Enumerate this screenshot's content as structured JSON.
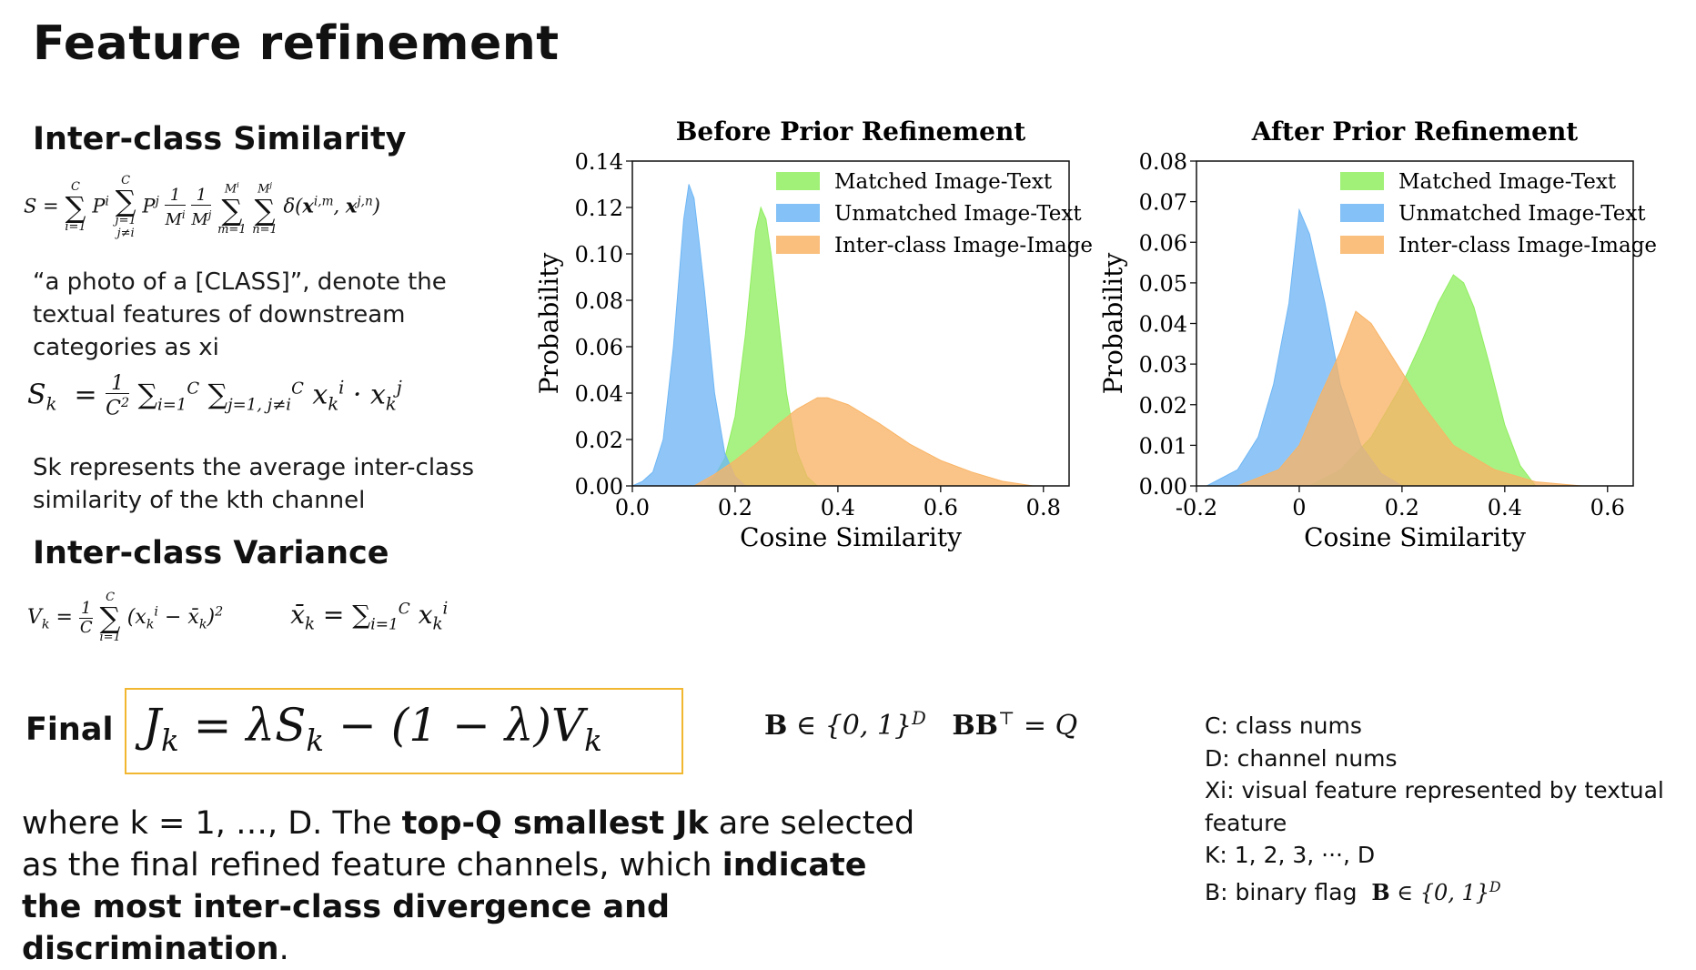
{
  "title": "Feature refinement",
  "sections": {
    "similarity_heading": "Inter-class Similarity",
    "similarity_desc_1": "“a photo of a [CLASS]”,   denote the textual features of downstream categories as xi",
    "sk_desc": "Sk represents the average inter-class similarity of the kth channel",
    "variance_heading": "Inter-class Variance",
    "final_label": "Final"
  },
  "bottom": {
    "p1": "where k = 1, …, D. The ",
    "b1": "top-Q smallest Jk",
    "p2": " are selected as the final refined feature channels, which ",
    "b2": "indicate the most inter-class divergence and discrimination",
    "p3": "."
  },
  "notes": [
    "C: class nums",
    "D: channel nums",
    "Xi: visual feature represented by textual feature",
    "K: 1, 2, 3, ···, D",
    "B: binary flag"
  ],
  "colors": {
    "matched": "#90ee60",
    "unmatched": "#6fb6f5",
    "interclass": "#f9b466",
    "final_box_border": "#f2b731"
  },
  "chart_data": [
    {
      "type": "area",
      "title": "Before Prior Refinement",
      "xlabel": "Cosine Similarity",
      "ylabel": "Probability",
      "xlim": [
        0.0,
        0.85
      ],
      "ylim": [
        0.0,
        0.14
      ],
      "xticks": [
        "0.0",
        "0.2",
        "0.4",
        "0.6",
        "0.8"
      ],
      "yticks": [
        "0.00",
        "0.02",
        "0.04",
        "0.06",
        "0.08",
        "0.10",
        "0.12",
        "0.14"
      ],
      "xtick_values": [
        0.0,
        0.2,
        0.4,
        0.6,
        0.8
      ],
      "ytick_values": [
        0.0,
        0.02,
        0.04,
        0.06,
        0.08,
        0.1,
        0.12,
        0.14
      ],
      "legend_position": "top-right",
      "series": [
        {
          "name": "Matched Image-Text",
          "color_key": "matched",
          "x": [
            0.14,
            0.16,
            0.18,
            0.2,
            0.22,
            0.24,
            0.25,
            0.26,
            0.27,
            0.28,
            0.3,
            0.32,
            0.34,
            0.36
          ],
          "y": [
            0.0,
            0.004,
            0.012,
            0.03,
            0.065,
            0.11,
            0.12,
            0.115,
            0.1,
            0.08,
            0.04,
            0.015,
            0.004,
            0.0
          ]
        },
        {
          "name": "Unmatched Image-Text",
          "color_key": "unmatched",
          "x": [
            0.0,
            0.02,
            0.04,
            0.06,
            0.08,
            0.1,
            0.11,
            0.12,
            0.13,
            0.14,
            0.16,
            0.18,
            0.2,
            0.22
          ],
          "y": [
            0.0,
            0.002,
            0.006,
            0.02,
            0.06,
            0.115,
            0.13,
            0.124,
            0.105,
            0.085,
            0.04,
            0.014,
            0.004,
            0.0
          ]
        },
        {
          "name": "Inter-class Image-Image",
          "color_key": "interclass",
          "x": [
            0.12,
            0.16,
            0.2,
            0.24,
            0.28,
            0.32,
            0.36,
            0.38,
            0.42,
            0.48,
            0.54,
            0.6,
            0.66,
            0.72,
            0.78
          ],
          "y": [
            0.0,
            0.005,
            0.011,
            0.018,
            0.026,
            0.033,
            0.038,
            0.038,
            0.035,
            0.027,
            0.018,
            0.011,
            0.006,
            0.002,
            0.0
          ]
        }
      ]
    },
    {
      "type": "area",
      "title": "After Prior Refinement",
      "xlabel": "Cosine Similarity",
      "ylabel": "Probability",
      "xlim": [
        -0.2,
        0.65
      ],
      "ylim": [
        0.0,
        0.08
      ],
      "xticks": [
        "-0.2",
        "0",
        "0.2",
        "0.4",
        "0.6"
      ],
      "yticks": [
        "0.00",
        "0.01",
        "0.02",
        "0.03",
        "0.04",
        "0.05",
        "0.06",
        "0.07",
        "0.08"
      ],
      "xtick_values": [
        -0.2,
        0.0,
        0.2,
        0.4,
        0.6
      ],
      "ytick_values": [
        0.0,
        0.01,
        0.02,
        0.03,
        0.04,
        0.05,
        0.06,
        0.07,
        0.08
      ],
      "legend_position": "top-right",
      "series": [
        {
          "name": "Matched Image-Text",
          "color_key": "matched",
          "x": [
            0.02,
            0.08,
            0.14,
            0.2,
            0.24,
            0.27,
            0.3,
            0.32,
            0.34,
            0.37,
            0.4,
            0.43,
            0.46
          ],
          "y": [
            0.0,
            0.004,
            0.012,
            0.025,
            0.036,
            0.045,
            0.052,
            0.05,
            0.044,
            0.03,
            0.015,
            0.005,
            0.0
          ]
        },
        {
          "name": "Unmatched Image-Text",
          "color_key": "unmatched",
          "x": [
            -0.18,
            -0.12,
            -0.08,
            -0.05,
            -0.02,
            0.0,
            0.02,
            0.05,
            0.08,
            0.12,
            0.16,
            0.2
          ],
          "y": [
            0.0,
            0.004,
            0.012,
            0.025,
            0.045,
            0.068,
            0.062,
            0.045,
            0.025,
            0.01,
            0.003,
            0.0
          ]
        },
        {
          "name": "Inter-class Image-Image",
          "color_key": "interclass",
          "x": [
            -0.12,
            -0.04,
            0.0,
            0.04,
            0.08,
            0.11,
            0.14,
            0.18,
            0.24,
            0.3,
            0.38,
            0.46,
            0.55
          ],
          "y": [
            0.0,
            0.004,
            0.01,
            0.022,
            0.033,
            0.043,
            0.04,
            0.032,
            0.02,
            0.01,
            0.004,
            0.001,
            0.0
          ]
        }
      ]
    }
  ]
}
